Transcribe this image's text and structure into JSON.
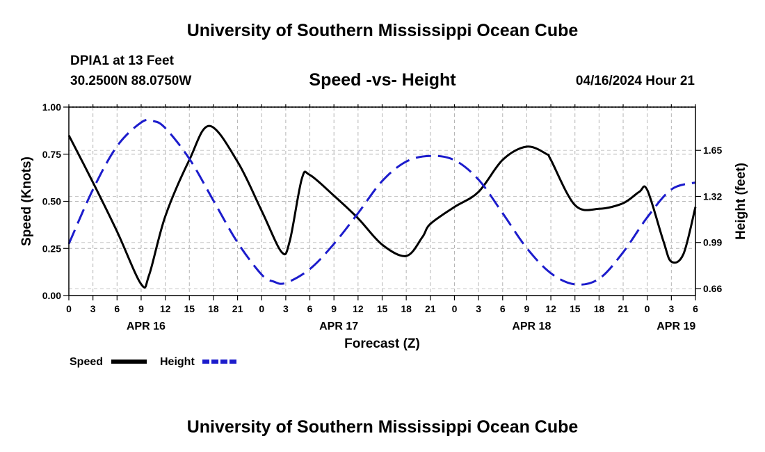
{
  "header": {
    "title": "University of Southern Mississippi Ocean Cube",
    "station": "DPIA1 at 13 Feet",
    "coords": "30.2500N  88.0750W",
    "subtitle": "Speed -vs- Height",
    "datetime": "04/16/2024 Hour 21"
  },
  "footer": {
    "title": "University of Southern Mississippi Ocean Cube"
  },
  "chart_data": {
    "type": "line",
    "title": "Speed -vs- Height",
    "xlabel": "Forecast (Z)",
    "ylabel": "Speed (Knots)",
    "y2label": "Height (feet)",
    "xlim": [
      0,
      78
    ],
    "ylim": [
      0,
      1
    ],
    "y2lim": [
      0.61,
      1.96
    ],
    "grid": true,
    "x_tick_hours": [
      0,
      3,
      6,
      9,
      12,
      15,
      18,
      21,
      24,
      27,
      30,
      33,
      36,
      39,
      42,
      45,
      48,
      51,
      54,
      57,
      60,
      63,
      66,
      69,
      72,
      75,
      78
    ],
    "x_tick_labels": [
      "0",
      "3",
      "6",
      "9",
      "12",
      "15",
      "18",
      "21",
      "0",
      "3",
      "6",
      "9",
      "12",
      "15",
      "18",
      "21",
      "0",
      "3",
      "6",
      "9",
      "12",
      "15",
      "18",
      "21",
      "0",
      "3",
      "6"
    ],
    "day_labels": [
      {
        "hour": 9.6,
        "label": "APR 16"
      },
      {
        "hour": 33.6,
        "label": "APR 17"
      },
      {
        "hour": 57.6,
        "label": "APR 18"
      },
      {
        "hour": 75.6,
        "label": "APR 19"
      }
    ],
    "y_ticks": [
      0.0,
      0.25,
      0.5,
      0.75,
      1.0
    ],
    "y_tick_labels": [
      "0.00",
      "0.25",
      "0.50",
      "0.75",
      "1.00"
    ],
    "y2_ticks": [
      0.66,
      0.99,
      1.32,
      1.65
    ],
    "y2_tick_labels": [
      "0.66",
      "0.99",
      "1.32",
      "1.65"
    ],
    "series": [
      {
        "name": "Speed",
        "axis": "left",
        "color": "#000000",
        "dash": "solid",
        "x": [
          0,
          3,
          6,
          9,
          10,
          12,
          15,
          17.5,
          21,
          24,
          26.5,
          27.5,
          29,
          30,
          33,
          36,
          39,
          42,
          44,
          45,
          48,
          51,
          54,
          57,
          59.5,
          60,
          63,
          66,
          69,
          71,
          72,
          74,
          75,
          76.5,
          78
        ],
        "y": [
          0.85,
          0.6,
          0.34,
          0.06,
          0.11,
          0.42,
          0.72,
          0.9,
          0.71,
          0.45,
          0.23,
          0.29,
          0.62,
          0.64,
          0.53,
          0.41,
          0.27,
          0.21,
          0.31,
          0.38,
          0.47,
          0.55,
          0.72,
          0.79,
          0.75,
          0.72,
          0.48,
          0.46,
          0.49,
          0.55,
          0.56,
          0.29,
          0.18,
          0.22,
          0.47
        ]
      },
      {
        "name": "Height",
        "axis": "right",
        "color": "#1c1ccc",
        "dash": "dashed",
        "x": [
          0,
          3,
          6,
          9,
          10.5,
          12,
          15,
          18,
          21,
          24,
          25.5,
          27,
          30,
          33,
          36,
          39,
          42,
          45,
          48,
          51,
          54,
          57,
          60,
          63,
          66,
          69,
          72,
          75,
          78
        ],
        "y": [
          0.98,
          1.37,
          1.68,
          1.85,
          1.86,
          1.81,
          1.59,
          1.29,
          0.99,
          0.76,
          0.71,
          0.7,
          0.8,
          0.98,
          1.2,
          1.43,
          1.57,
          1.61,
          1.58,
          1.44,
          1.2,
          0.95,
          0.77,
          0.69,
          0.73,
          0.92,
          1.17,
          1.37,
          1.42
        ]
      }
    ],
    "legend": [
      {
        "label": "Speed",
        "color": "#000000",
        "dash": "solid"
      },
      {
        "label": "Height",
        "color": "#1c1ccc",
        "dash": "dashed"
      }
    ]
  }
}
